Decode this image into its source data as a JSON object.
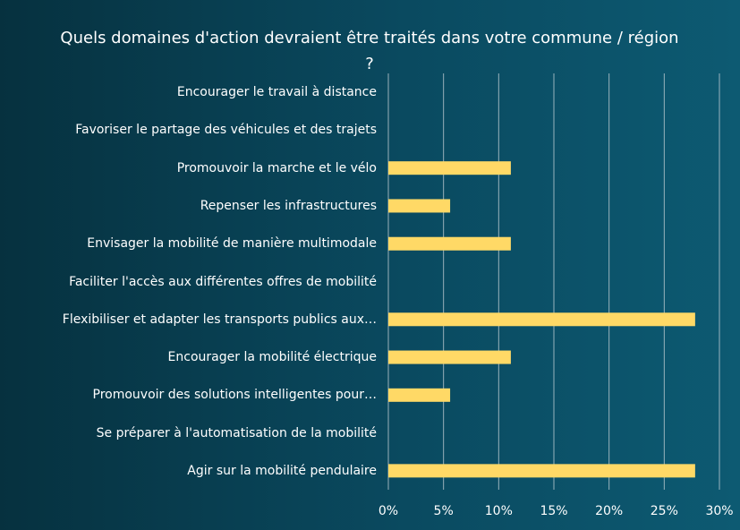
{
  "chart_data": {
    "type": "bar",
    "orientation": "horizontal",
    "title": "Quels domaines d'action devraient être traités dans votre commune / région ?",
    "categories": [
      "Encourager le travail à distance",
      "Favoriser le partage des véhicules et des trajets",
      "Promouvoir la marche et le vélo",
      "Repenser les infrastructures",
      "Envisager la mobilité de manière multimodale",
      "Faciliter l'accès aux différentes offres de mobilité",
      "Flexibiliser et adapter les transports publics aux…",
      "Encourager la mobilité électrique",
      "Promouvoir des solutions intelligentes pour…",
      "Se préparer à l'automatisation de la mobilité",
      "Agir sur la mobilité pendulaire"
    ],
    "values": [
      0,
      0,
      11.1,
      5.6,
      11.1,
      0,
      27.8,
      11.1,
      5.6,
      0,
      27.8
    ],
    "xlim": [
      0,
      30
    ],
    "xticks": [
      "0%",
      "5%",
      "10%",
      "15%",
      "20%",
      "25%",
      "30%"
    ],
    "xlabel": "",
    "ylabel": "",
    "grid": "vertical",
    "bar_color": "#ffd966",
    "grid_color": "#c9d3d9"
  }
}
